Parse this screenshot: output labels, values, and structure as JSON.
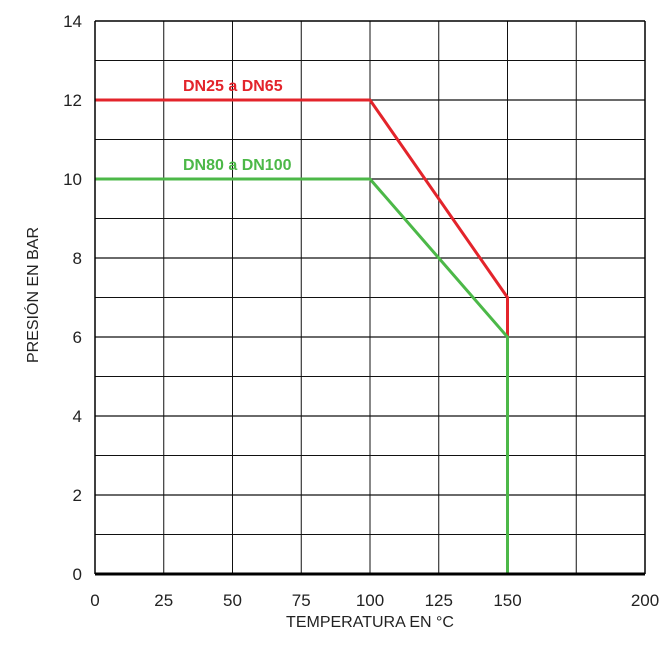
{
  "chart_data": {
    "type": "line",
    "title": "",
    "xlabel": "TEMPERATURA   EN °C",
    "ylabel": "PRESIÓN  EN BAR",
    "xlim": [
      0,
      200
    ],
    "ylim": [
      0,
      14
    ],
    "x_ticks": [
      0,
      25,
      50,
      75,
      100,
      125,
      150,
      200
    ],
    "y_ticks": [
      0,
      2,
      4,
      6,
      8,
      10,
      12,
      14
    ],
    "x_tick_labels": [
      "0",
      "25",
      "50",
      "75",
      "100",
      "125",
      "150",
      "200"
    ],
    "y_tick_labels": [
      "0",
      "2",
      "4",
      "6",
      "8",
      "10",
      "12",
      "14"
    ],
    "grid": true,
    "series": [
      {
        "name": "DN25 a DN65",
        "color": "#e3242b",
        "x": [
          0,
          100,
          150,
          150
        ],
        "y": [
          12,
          12,
          7,
          6
        ]
      },
      {
        "name": "DN80 a DN100",
        "color": "#4cb848",
        "x": [
          0,
          100,
          150,
          150
        ],
        "y": [
          10,
          10,
          6,
          0
        ]
      }
    ]
  }
}
